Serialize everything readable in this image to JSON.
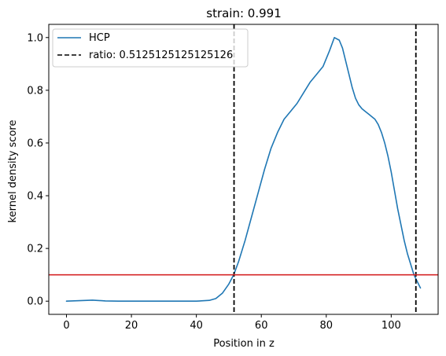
{
  "chart_data": {
    "type": "line",
    "title": "strain: 0.991",
    "xlabel": "Position in z",
    "ylabel": "kernel density score",
    "xlim": [
      -5.45,
      114.45
    ],
    "ylim": [
      -0.05,
      1.05
    ],
    "xticks": [
      0,
      20,
      40,
      60,
      80,
      100
    ],
    "yticks": [
      0.0,
      0.2,
      0.4,
      0.6,
      0.8,
      1.0
    ],
    "xtick_labels": [
      "0",
      "20",
      "40",
      "60",
      "80",
      "100"
    ],
    "ytick_labels": [
      "0.0",
      "0.2",
      "0.4",
      "0.6",
      "0.8",
      "1.0"
    ],
    "grid": false,
    "legend_position": "top-left",
    "series": [
      {
        "name": "HCP",
        "color": "#1f77b4",
        "style": "solid",
        "x": [
          0,
          4,
          8,
          12,
          16,
          20,
          25,
          30,
          35,
          40,
          44,
          46,
          48,
          50,
          51.5,
          53,
          55,
          57,
          59,
          61,
          63,
          65,
          67,
          69,
          71,
          73,
          75,
          77,
          79,
          81,
          82.5,
          84,
          85,
          86,
          87,
          88,
          89,
          90,
          91,
          92,
          93,
          94,
          95,
          96,
          97,
          98,
          99,
          100,
          101,
          102,
          103,
          104,
          105,
          106,
          107,
          108,
          109
        ],
        "y": [
          0.0,
          0.002,
          0.004,
          0.001,
          0.0,
          0.0,
          0.0,
          0.0,
          0.0,
          0.0,
          0.003,
          0.01,
          0.03,
          0.065,
          0.1,
          0.15,
          0.23,
          0.32,
          0.41,
          0.5,
          0.58,
          0.64,
          0.69,
          0.72,
          0.75,
          0.79,
          0.83,
          0.86,
          0.89,
          0.95,
          1.0,
          0.99,
          0.96,
          0.91,
          0.86,
          0.81,
          0.77,
          0.745,
          0.73,
          0.72,
          0.71,
          0.7,
          0.69,
          0.67,
          0.64,
          0.6,
          0.55,
          0.49,
          0.42,
          0.35,
          0.29,
          0.23,
          0.18,
          0.14,
          0.1,
          0.075,
          0.05
        ]
      },
      {
        "name": "ratio: 0.5125125125125126",
        "color": "#000000",
        "style": "dashed",
        "kind": "vline",
        "x_values": [
          51.6,
          107.6
        ]
      },
      {
        "color": "#d62728",
        "style": "solid",
        "kind": "hline",
        "y_value": 0.1
      }
    ],
    "legend": [
      {
        "label": "HCP",
        "color": "#1f77b4",
        "style": "solid"
      },
      {
        "label": "ratio: 0.5125125125125126",
        "color": "#000000",
        "style": "dashed"
      }
    ]
  }
}
